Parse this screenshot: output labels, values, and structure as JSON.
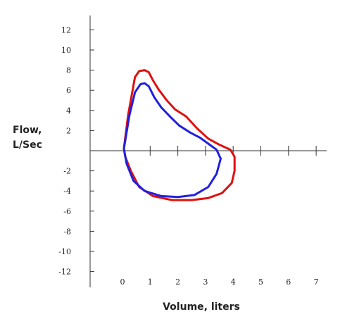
{
  "chart_data": {
    "type": "line",
    "title": "",
    "xlabel": "Volume, liters",
    "ylabel": [
      "Flow,",
      "L/Sec"
    ],
    "xlim": [
      0,
      7
    ],
    "ylim": [
      -13,
      13
    ],
    "x_ticks": [
      0,
      1,
      2,
      3,
      4,
      5,
      6,
      7
    ],
    "y_ticks": [
      12,
      10,
      8,
      6,
      4,
      2,
      -2,
      -4,
      -6,
      -8,
      -10,
      -12
    ],
    "grid": false,
    "legend": "none",
    "series": [
      {
        "color": "#e01010",
        "points": [
          [
            0.05,
            0.2
          ],
          [
            0.2,
            3.5
          ],
          [
            0.45,
            7.3
          ],
          [
            0.6,
            7.9
          ],
          [
            0.8,
            8.0
          ],
          [
            0.95,
            7.8
          ],
          [
            1.1,
            7.0
          ],
          [
            1.3,
            6.1
          ],
          [
            1.6,
            5.0
          ],
          [
            1.9,
            4.1
          ],
          [
            2.3,
            3.4
          ],
          [
            2.7,
            2.2
          ],
          [
            3.1,
            1.2
          ],
          [
            3.5,
            0.6
          ],
          [
            3.9,
            0.1
          ],
          [
            4.05,
            -0.6
          ],
          [
            4.05,
            -2.0
          ],
          [
            3.95,
            -3.2
          ],
          [
            3.6,
            -4.2
          ],
          [
            3.1,
            -4.7
          ],
          [
            2.5,
            -4.9
          ],
          [
            1.8,
            -4.9
          ],
          [
            1.1,
            -4.5
          ],
          [
            0.6,
            -3.6
          ],
          [
            0.3,
            -2.0
          ],
          [
            0.1,
            -0.6
          ],
          [
            0.05,
            0.2
          ]
        ]
      },
      {
        "color": "#2020e0",
        "points": [
          [
            0.05,
            0.2
          ],
          [
            0.25,
            3.5
          ],
          [
            0.45,
            5.8
          ],
          [
            0.65,
            6.6
          ],
          [
            0.8,
            6.7
          ],
          [
            0.95,
            6.4
          ],
          [
            1.15,
            5.3
          ],
          [
            1.4,
            4.3
          ],
          [
            1.75,
            3.3
          ],
          [
            2.05,
            2.5
          ],
          [
            2.45,
            1.8
          ],
          [
            2.8,
            1.3
          ],
          [
            3.1,
            0.7
          ],
          [
            3.4,
            0.1
          ],
          [
            3.55,
            -0.8
          ],
          [
            3.4,
            -2.3
          ],
          [
            3.1,
            -3.6
          ],
          [
            2.6,
            -4.4
          ],
          [
            2.0,
            -4.6
          ],
          [
            1.4,
            -4.5
          ],
          [
            0.8,
            -4.0
          ],
          [
            0.4,
            -3.0
          ],
          [
            0.15,
            -1.3
          ],
          [
            0.05,
            0.2
          ]
        ]
      }
    ]
  }
}
